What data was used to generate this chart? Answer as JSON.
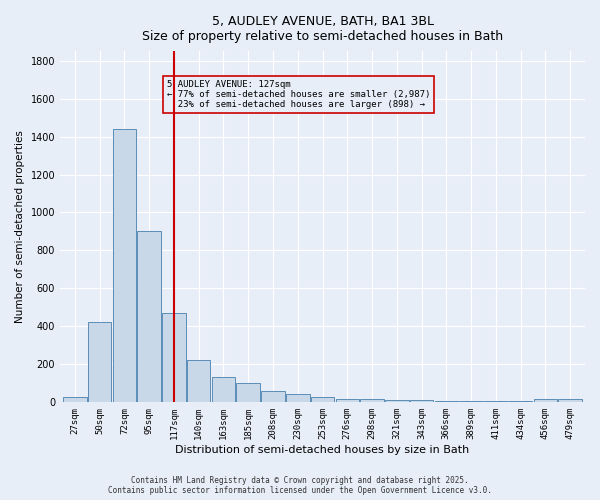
{
  "title": "5, AUDLEY AVENUE, BATH, BA1 3BL",
  "subtitle": "Size of property relative to semi-detached houses in Bath",
  "xlabel": "Distribution of semi-detached houses by size in Bath",
  "ylabel": "Number of semi-detached properties",
  "categories": [
    "27sqm",
    "50sqm",
    "72sqm",
    "95sqm",
    "117sqm",
    "140sqm",
    "163sqm",
    "185sqm",
    "208sqm",
    "230sqm",
    "253sqm",
    "276sqm",
    "298sqm",
    "321sqm",
    "343sqm",
    "366sqm",
    "389sqm",
    "411sqm",
    "434sqm",
    "456sqm",
    "479sqm"
  ],
  "values": [
    30,
    425,
    1440,
    900,
    470,
    225,
    135,
    100,
    60,
    45,
    30,
    20,
    15,
    12,
    10,
    8,
    8,
    6,
    5,
    15,
    15
  ],
  "bar_color": "#c8d8e8",
  "bar_edge_color": "#5b8db8",
  "bg_color": "#e8eef8",
  "grid_color": "#ffffff",
  "property_value": 127,
  "property_label": "5 AUDLEY AVENUE: 127sqm",
  "pct_smaller": 77,
  "pct_larger": 23,
  "n_smaller": 2987,
  "n_larger": 898,
  "vline_color": "#cc0000",
  "vline_bin_index": 4,
  "annotation_box_color": "#cc0000",
  "ylim": [
    0,
    1850
  ],
  "yticks": [
    0,
    200,
    400,
    600,
    800,
    1000,
    1200,
    1400,
    1600,
    1800
  ],
  "footer_line1": "Contains HM Land Registry data © Crown copyright and database right 2025.",
  "footer_line2": "Contains public sector information licensed under the Open Government Licence v3.0."
}
